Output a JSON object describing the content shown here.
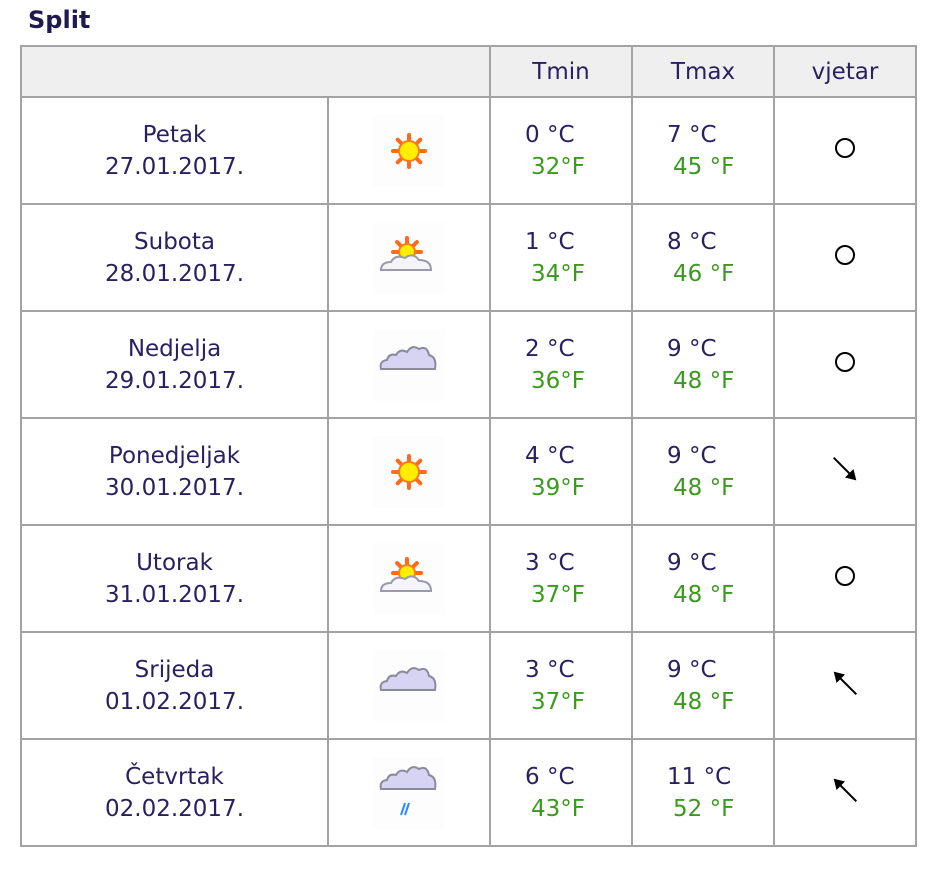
{
  "city": "Split",
  "columns": {
    "tmin": "Tmin",
    "tmax": "Tmax",
    "wind": "vjetar"
  },
  "colors": {
    "text": "#2a2060",
    "fahrenheit": "#3a9a1e",
    "header_bg": "#efefef",
    "border": "#a3a3a3"
  },
  "rows": [
    {
      "day": "Petak",
      "date": "27.01.2017.",
      "icon": "sun-icon",
      "tmin_c": "0 °C",
      "tmin_f": "32°F",
      "tmax_c": "7 °C",
      "tmax_f": "45 °F",
      "wind": "calm-circle-icon"
    },
    {
      "day": "Subota",
      "date": "28.01.2017.",
      "icon": "sun-cloud-icon",
      "tmin_c": "1 °C",
      "tmin_f": "34°F",
      "tmax_c": "8 °C",
      "tmax_f": "46 °F",
      "wind": "calm-circle-icon"
    },
    {
      "day": "Nedjelja",
      "date": "29.01.2017.",
      "icon": "clouds-icon",
      "tmin_c": "2 °C",
      "tmin_f": "36°F",
      "tmax_c": "9 °C",
      "tmax_f": "48 °F",
      "wind": "calm-circle-icon"
    },
    {
      "day": "Ponedjeljak",
      "date": "30.01.2017.",
      "icon": "sun-icon",
      "tmin_c": "4 °C",
      "tmin_f": "39°F",
      "tmax_c": "9 °C",
      "tmax_f": "48 °F",
      "wind": "arrow-down-right-icon"
    },
    {
      "day": "Utorak",
      "date": "31.01.2017.",
      "icon": "sun-cloud-icon",
      "tmin_c": "3 °C",
      "tmin_f": "37°F",
      "tmax_c": "9 °C",
      "tmax_f": "48 °F",
      "wind": "calm-circle-icon"
    },
    {
      "day": "Srijeda",
      "date": "01.02.2017.",
      "icon": "clouds-icon",
      "tmin_c": "3 °C",
      "tmin_f": "37°F",
      "tmax_c": "9 °C",
      "tmax_f": "48 °F",
      "wind": "arrow-up-left-icon"
    },
    {
      "day": "Četvrtak",
      "date": "02.02.2017.",
      "icon": "clouds-rain-icon",
      "tmin_c": "6 °C",
      "tmin_f": "43°F",
      "tmax_c": "11 °C",
      "tmax_f": "52 °F",
      "wind": "arrow-up-left-icon"
    }
  ]
}
